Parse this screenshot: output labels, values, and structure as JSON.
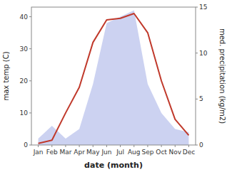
{
  "chart_data": {
    "type": "line",
    "x_label": "date (month)",
    "y_label": "max temp (C)",
    "y2_label": "med. precipitation (kg/m2)",
    "categories": [
      "Jan",
      "Feb",
      "Mar",
      "Apr",
      "May",
      "Jun",
      "Jul",
      "Aug",
      "Sep",
      "Oct",
      "Nov",
      "Dec"
    ],
    "series": [
      {
        "type": "area",
        "axis": "y2",
        "color": "#aab4e8",
        "values": [
          0.697674418604651,
          2.093023255813953,
          0.697674418604651,
          1.744186046511628,
          6.627906976744186,
          13.255813953488373,
          13.953488372093023,
          14.651162790697674,
          6.627906976744186,
          3.488372093023256,
          1.744186046511628,
          1.395348837209302
        ]
      },
      {
        "type": "line",
        "color": "#c0392b",
        "values": [
          0.5,
          1.5,
          10,
          18,
          32,
          39,
          39.5,
          41,
          35,
          20,
          8,
          3
        ]
      }
    ],
    "ylim": [
      0,
      43
    ],
    "yticks": [
      0,
      10,
      20,
      30,
      40
    ],
    "y2lim": [
      0,
      15
    ],
    "y2ticks": [
      0,
      5,
      10,
      15
    ],
    "grid": false
  }
}
